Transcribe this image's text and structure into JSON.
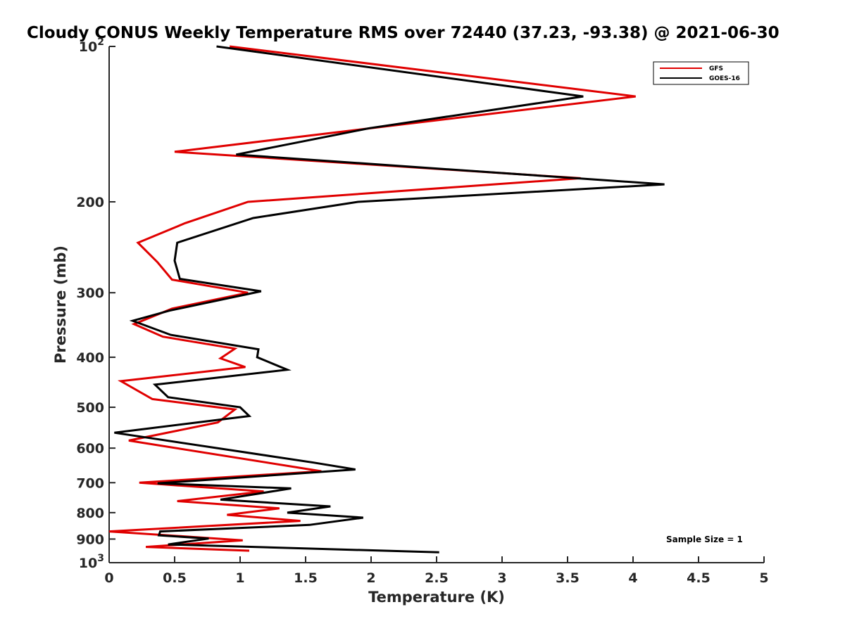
{
  "chart_data": {
    "type": "line",
    "title": "Cloudy CONUS Weekly Temperature RMS over 72440 (37.23, -93.38) @ 2021-06-30",
    "xlabel": "Temperature (K)",
    "ylabel": "Pressure (mb)",
    "xlim": [
      0,
      5
    ],
    "ylim": [
      100,
      1000
    ],
    "y_scale": "log",
    "y_reversed": true,
    "x_ticks": [
      "0",
      "0.5",
      "1",
      "1.5",
      "2",
      "2.5",
      "3",
      "3.5",
      "4",
      "4.5",
      "5"
    ],
    "y_ticks": [
      {
        "value": 100,
        "base": "10",
        "exp": "2"
      },
      {
        "value": 200,
        "label": "200"
      },
      {
        "value": 300,
        "label": "300"
      },
      {
        "value": 400,
        "label": "400"
      },
      {
        "value": 500,
        "label": "500"
      },
      {
        "value": 600,
        "label": "600"
      },
      {
        "value": 700,
        "label": "700"
      },
      {
        "value": 800,
        "label": "800"
      },
      {
        "value": 900,
        "label": "900"
      },
      {
        "value": 1000,
        "base": "10",
        "exp": "3"
      }
    ],
    "legend": {
      "position": "top-right"
    },
    "annotation": "Sample Size = 1",
    "series": [
      {
        "name": "GFS",
        "color": "#e00000",
        "x": [
          0.92,
          4.02,
          0.5,
          3.6,
          1.06,
          0.58,
          0.22,
          0.37,
          0.48,
          1.06,
          0.48,
          0.19,
          0.41,
          0.96,
          0.85,
          1.04,
          0.09,
          0.33,
          0.96,
          0.83,
          0.15,
          1.62,
          0.23,
          1.18,
          0.52,
          1.3,
          0.9,
          1.46,
          0.0,
          1.02,
          0.28,
          1.07
        ],
        "y": [
          100,
          125,
          160,
          180,
          200,
          220,
          240,
          262,
          283,
          300,
          322,
          345,
          365,
          385,
          402,
          418,
          445,
          482,
          505,
          535,
          580,
          665,
          700,
          728,
          760,
          785,
          808,
          830,
          870,
          905,
          932,
          948
        ]
      },
      {
        "name": "GOES-16",
        "color": "#000000",
        "x": [
          0.82,
          3.62,
          1.99,
          0.97,
          4.24,
          1.9,
          1.1,
          0.52,
          0.5,
          0.54,
          1.16,
          0.46,
          0.18,
          0.47,
          1.14,
          1.13,
          1.36,
          0.35,
          0.45,
          1.0,
          1.07,
          0.04,
          1.56,
          1.88,
          0.37,
          1.39,
          0.85,
          1.69,
          1.36,
          1.94,
          1.53,
          0.39,
          0.38,
          0.76,
          0.45,
          2.52
        ],
        "y": [
          100,
          125,
          144,
          162,
          185,
          200,
          215,
          240,
          260,
          282,
          298,
          325,
          340,
          362,
          386,
          400,
          423,
          452,
          478,
          500,
          520,
          560,
          640,
          660,
          702,
          718,
          755,
          778,
          800,
          818,
          845,
          870,
          885,
          898,
          922,
          955
        ]
      }
    ]
  }
}
